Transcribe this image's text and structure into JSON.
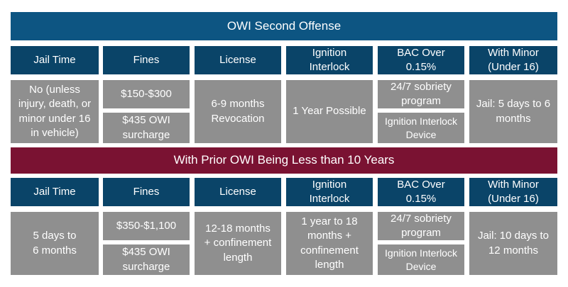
{
  "section1": {
    "title": "OWI Second Offense",
    "headers": [
      "Jail Time",
      "Fines",
      "License",
      "Ignition\nInterlock",
      "BAC Over\n0.15%",
      "With Minor\n(Under 16)"
    ],
    "jail": "No (unless\ninjury, death, or\nminor under 16\nin vehicle)",
    "fines_top": "$150-$300",
    "fines_bottom": "$435 OWI\nsurcharge",
    "license": "6-9 months\nRevocation",
    "ignition": "1 Year Possible",
    "bac_top": "24/7 sobriety\nprogram",
    "bac_bottom": "Ignition Interlock\nDevice",
    "minor": "Jail: 5 days to 6\nmonths"
  },
  "section2": {
    "title": "With Prior OWI Being Less than 10 Years",
    "headers": [
      "Jail Time",
      "Fines",
      "License",
      "Ignition\nInterlock",
      "BAC Over\n0.15%",
      "With Minor\n(Under 16)"
    ],
    "jail": "5 days to\n6 months",
    "fines_top": "$350-$1,100",
    "fines_bottom": "$435 OWI\nsurcharge",
    "license": "12-18 months\n+ confinement\nlength",
    "ignition": "1 year to 18\nmonths +\nconfinement\nlength",
    "bac_top": "24/7 sobriety\nprogram",
    "bac_bottom": "Ignition Interlock\nDevice",
    "minor": "Jail: 10 days to\n12 months"
  }
}
